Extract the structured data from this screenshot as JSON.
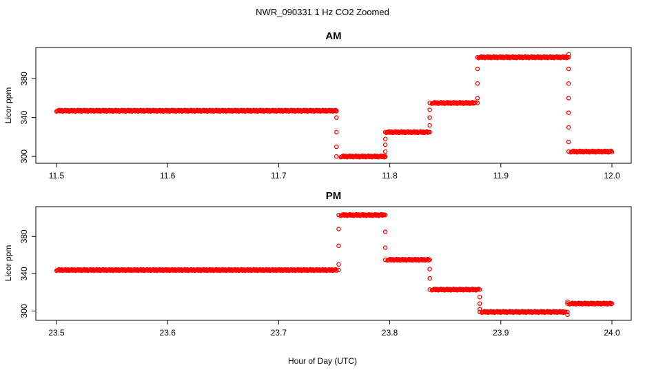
{
  "figure": {
    "title": "NWR_090331  1 Hz CO2 Zoomed",
    "xlabel": "Hour of Day (UTC)",
    "point_color": "#ff0000"
  },
  "chart_data": [
    {
      "type": "scatter",
      "title": "AM",
      "ylabel": "Licor ppm",
      "xlim": [
        11.5,
        12.0
      ],
      "ylim": [
        293,
        412
      ],
      "xticks": [
        "11.5",
        "11.6",
        "11.7",
        "11.8",
        "11.9",
        "12.0"
      ],
      "yticks": [
        "300",
        "340",
        "380"
      ],
      "segments": [
        {
          "x": [
            11.5,
            11.752
          ],
          "y": 347
        },
        {
          "x": [
            11.756,
            11.796
          ],
          "y": 300
        },
        {
          "x": [
            11.797,
            11.835
          ],
          "y": 325
        },
        {
          "x": [
            11.838,
            11.877
          ],
          "y": 355
        },
        {
          "x": [
            11.88,
            11.96
          ],
          "y": 402
        },
        {
          "x": [
            11.963,
            12.0
          ],
          "y": 305
        }
      ],
      "transitions": [
        {
          "x": 11.752,
          "y": [
            347,
            340,
            325,
            310,
            300
          ]
        },
        {
          "x": 11.796,
          "y": [
            300,
            305,
            312,
            318,
            325
          ]
        },
        {
          "x": 11.836,
          "y": [
            325,
            332,
            340,
            348,
            355
          ]
        },
        {
          "x": 11.879,
          "y": [
            355,
            360,
            375,
            390,
            402
          ]
        },
        {
          "x": 11.961,
          "y": [
            402,
            405,
            390,
            375,
            360,
            345,
            330,
            315,
            305
          ]
        }
      ]
    },
    {
      "type": "scatter",
      "title": "PM",
      "ylabel": "Licor ppm",
      "xlim": [
        23.5,
        24.0
      ],
      "ylim": [
        290,
        412
      ],
      "xticks": [
        "23.5",
        "23.6",
        "23.7",
        "23.8",
        "23.9",
        "24.0"
      ],
      "yticks": [
        "300",
        "340",
        "380"
      ],
      "segments": [
        {
          "x": [
            23.5,
            23.752
          ],
          "y": 344
        },
        {
          "x": [
            23.756,
            23.795
          ],
          "y": 403
        },
        {
          "x": [
            23.798,
            23.835
          ],
          "y": 355
        },
        {
          "x": [
            23.838,
            23.88
          ],
          "y": 323
        },
        {
          "x": [
            23.883,
            23.958
          ],
          "y": 299
        },
        {
          "x": [
            23.962,
            24.0
          ],
          "y": 308
        }
      ],
      "transitions": [
        {
          "x": 23.754,
          "y": [
            344,
            350,
            370,
            388,
            403
          ]
        },
        {
          "x": 23.796,
          "y": [
            403,
            385,
            368,
            355
          ]
        },
        {
          "x": 23.836,
          "y": [
            355,
            345,
            335,
            323
          ]
        },
        {
          "x": 23.881,
          "y": [
            323,
            315,
            308,
            302,
            299
          ]
        },
        {
          "x": 23.96,
          "y": [
            299,
            296,
            310,
            308
          ]
        }
      ]
    }
  ]
}
